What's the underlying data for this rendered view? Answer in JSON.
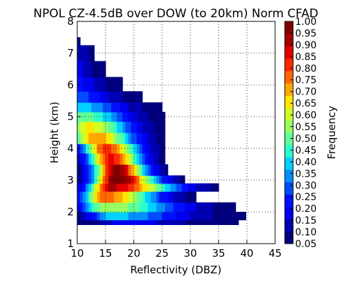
{
  "chart_data": {
    "type": "heatmap",
    "title": "NPOL CZ-4.5dB over DOW (to 20km) Norm CFAD",
    "xlabel": "Reflectivity (DBZ)",
    "ylabel": "Height (km)",
    "xlim": [
      10,
      45
    ],
    "ylim": [
      1,
      8
    ],
    "x_ticks": [
      "10",
      "15",
      "20",
      "25",
      "30",
      "35",
      "40",
      "45"
    ],
    "y_ticks": [
      "1",
      "2",
      "3",
      "4",
      "5",
      "6",
      "7",
      "8"
    ],
    "grid": true,
    "colorbar": {
      "label": "Frequency",
      "ticks": [
        "0.05",
        "0.10",
        "0.15",
        "0.20",
        "0.25",
        "0.30",
        "0.35",
        "0.40",
        "0.45",
        "0.50",
        "0.55",
        "0.60",
        "0.65",
        "0.70",
        "0.75",
        "0.80",
        "0.85",
        "0.90",
        "0.95",
        "1.00"
      ],
      "colors": [
        "#00007f",
        "#0000b2",
        "#0000f1",
        "#0010ff",
        "#004cff",
        "#0090ff",
        "#00d0ff",
        "#29ffce",
        "#60ff97",
        "#97ff60",
        "#ceff29",
        "#ffe600",
        "#ffa700",
        "#ff6800",
        "#ff2900",
        "#e50000",
        "#a40000",
        "#7f0000"
      ]
    },
    "cfad": {
      "heights": [
        1.6,
        1.9,
        2.1,
        2.5,
        2.8,
        3.0,
        3.3,
        3.7,
        4.0,
        4.3,
        4.7,
        5.0,
        5.3,
        5.6,
        6.0,
        6.5,
        7.0,
        7.5
      ],
      "dbz_max": [
        38.5,
        39.8,
        38,
        31,
        35,
        29,
        26,
        25.5,
        25.5,
        25.5,
        25.5,
        25.5,
        25,
        21.5,
        18,
        15,
        13,
        10.5
      ],
      "center_dbz": [
        18,
        16,
        15,
        15,
        16,
        17,
        17,
        16,
        15,
        13,
        12,
        11,
        10.5,
        10,
        10,
        10,
        10,
        10
      ],
      "peak_frequency": [
        0.15,
        0.35,
        0.55,
        0.75,
        0.9,
        1.0,
        0.95,
        0.85,
        0.8,
        0.72,
        0.62,
        0.48,
        0.35,
        0.25,
        0.18,
        0.12,
        0.08,
        0.05
      ]
    }
  }
}
